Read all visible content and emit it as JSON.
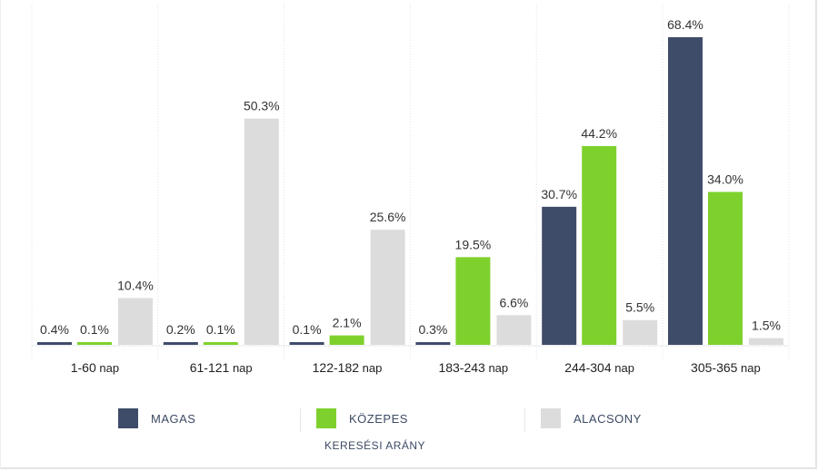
{
  "chart_data": {
    "type": "bar",
    "title": "KERESÉSI ARÁNY",
    "categories": [
      "1-60 nap",
      "61-121 nap",
      "122-182 nap",
      "183-243 nap",
      "244-304 nap",
      "305-365 nap"
    ],
    "category_parts": [
      [
        "1-60",
        " nap"
      ],
      [
        "61-121",
        " nap"
      ],
      [
        "122-182",
        " nap"
      ],
      [
        "183-243",
        " nap"
      ],
      [
        "244-304",
        " nap"
      ],
      [
        "305-365",
        " nap"
      ]
    ],
    "series": [
      {
        "name": "MAGAS",
        "color": "#3f4c69",
        "values": [
          0.4,
          0.2,
          0.1,
          0.3,
          30.7,
          68.4
        ],
        "labels": [
          "0.4%",
          "0.2%",
          "0.1%",
          "0.3%",
          "30.7%",
          "68.4%"
        ]
      },
      {
        "name": "KÖZEPES",
        "color": "#7ed12d",
        "values": [
          0.1,
          0.1,
          2.1,
          19.5,
          44.2,
          34.0
        ],
        "labels": [
          "0.1%",
          "0.1%",
          "2.1%",
          "19.5%",
          "44.2%",
          "34.0%"
        ]
      },
      {
        "name": "ALACSONY",
        "color": "#dcdcdc",
        "values": [
          10.4,
          50.3,
          25.6,
          6.6,
          5.5,
          1.5
        ],
        "labels": [
          "10.4%",
          "50.3%",
          "25.6%",
          "6.6%",
          "5.5%",
          "1.5%"
        ]
      }
    ],
    "ylim": [
      0,
      70
    ],
    "grid": true,
    "legend_position": "bottom",
    "value_unit": "%"
  }
}
